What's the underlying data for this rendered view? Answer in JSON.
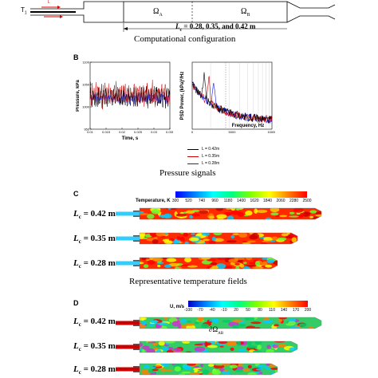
{
  "schematic": {
    "inlet_label": "T",
    "inlet_sub": "1",
    "small_label": "L",
    "omega_a": "Ω",
    "omega_a_sub": "A",
    "omega_b": "Ω",
    "omega_b_sub": "B",
    "lc_line_prefix": "L",
    "lc_line_sub": "c",
    "lc_line_values": " = 0.28, 0.35, and 0.42 m",
    "caption": "Computational configuration"
  },
  "panel_b": {
    "letter": "B",
    "caption": "Pressure signals",
    "legend": [
      {
        "text": "L = 0.42m",
        "sub": "c",
        "color": "#000000"
      },
      {
        "text": "L = 0.35m",
        "sub": "c",
        "color": "#cc0000"
      },
      {
        "text": "L = 0.28m",
        "sub": "c",
        "color": "#1a1aff"
      }
    ]
  },
  "panel_c": {
    "letter": "C",
    "caption": "Representative temperature fields",
    "colorbar_title": "Temperature, K",
    "ticks": [
      "300",
      "520",
      "740",
      "960",
      "1180",
      "1400",
      "1620",
      "1840",
      "2060",
      "2280",
      "2500"
    ],
    "rows": [
      {
        "prefix": "L",
        "sub": "c",
        "value": " = 0.42 m"
      },
      {
        "prefix": "L",
        "sub": "c",
        "value": " = 0.35 m"
      },
      {
        "prefix": "L",
        "sub": "c",
        "value": " = 0.28 m"
      }
    ]
  },
  "panel_d": {
    "letter": "D",
    "colorbar_title": "U, m/s",
    "ticks": [
      "-100",
      "-70",
      "-40",
      "-10",
      "20",
      "50",
      "80",
      "110",
      "140",
      "170",
      "200"
    ],
    "surface_label": "∂Ω",
    "surface_sub": "AB",
    "rows": [
      {
        "prefix": "L",
        "sub": "c",
        "value": " = 0.42 m"
      },
      {
        "prefix": "L",
        "sub": "c",
        "value": " = 0.35 m"
      },
      {
        "prefix": "L",
        "sub": "c",
        "value": " = 0.28 m"
      }
    ]
  },
  "chart_data": [
    {
      "type": "line",
      "title": "",
      "xlabel": "Time, s",
      "ylabel": "Pressure, kPa",
      "xlim": [
        0.01,
        0.035
      ],
      "ylim": [
        950,
        1100
      ],
      "x_ticks": [
        "0.01",
        "0.015",
        "0.02",
        "0.025",
        "0.03",
        "0.035"
      ],
      "y_ticks": [
        "1100",
        "1050",
        "1000",
        "950"
      ],
      "series": [
        {
          "name": "L = 0.42m",
          "color": "#000000",
          "mean": 1022,
          "amplitude": 20
        },
        {
          "name": "L = 0.35m",
          "color": "#cc0000",
          "mean": 1028,
          "amplitude": 26
        },
        {
          "name": "L = 0.28m",
          "color": "#1a1aff",
          "mean": 1020,
          "amplitude": 11
        }
      ]
    },
    {
      "type": "line",
      "title": "",
      "xlabel": "Frequency, Hz",
      "ylabel": "PSD Power, (kPa)²/Hz",
      "xlim": [
        0,
        10000
      ],
      "x_ticks": [
        "0",
        "5000",
        "10000"
      ],
      "series": [
        {
          "name": "L = 0.42m",
          "color": "#000000",
          "peak_hz": 2600
        },
        {
          "name": "L = 0.35m",
          "color": "#cc0000",
          "peak_hz": 1900
        },
        {
          "name": "L = 0.28m",
          "color": "#1a1aff",
          "peak_hz": 1300
        }
      ]
    }
  ]
}
